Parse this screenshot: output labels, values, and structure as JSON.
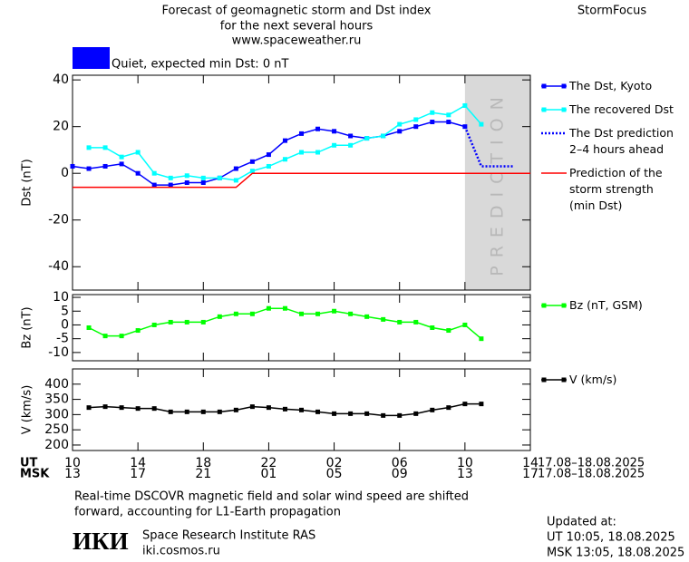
{
  "header": {
    "title_lines": [
      "Forecast of geomagnetic storm and Dst index",
      "for the next several hours",
      "www.spaceweather.ru"
    ],
    "brand": "StormFocus"
  },
  "status": {
    "text": "Quiet, expected min Dst: 0 nT",
    "color": "#0000ff"
  },
  "chart_data": [
    {
      "type": "line",
      "ylabel": "Dst (nT)",
      "xlim": [
        0,
        28
      ],
      "ylim": [
        -50,
        42
      ],
      "yticks": [
        -40,
        -20,
        0,
        20,
        40
      ],
      "prediction_region": {
        "x": [
          24,
          28
        ],
        "label": "PREDICTION"
      },
      "series": [
        {
          "name": "The Dst, Kyoto",
          "color": "#0000ff",
          "marker": "square",
          "x": [
            0,
            1,
            2,
            3,
            4,
            5,
            6,
            7,
            8,
            9,
            10,
            11,
            12,
            13,
            14,
            15,
            16,
            17,
            18,
            19,
            20,
            21,
            22,
            23,
            24
          ],
          "values": [
            3,
            2,
            3,
            4,
            0,
            -5,
            -5,
            -4,
            -4,
            -2,
            2,
            5,
            8,
            14,
            17,
            19,
            18,
            16,
            15,
            16,
            18,
            20,
            22,
            22,
            20
          ]
        },
        {
          "name": "The recovered Dst",
          "color": "#00ffff",
          "marker": "square",
          "x": [
            1,
            2,
            3,
            4,
            5,
            6,
            7,
            8,
            9,
            10,
            11,
            12,
            13,
            14,
            15,
            16,
            17,
            18,
            19,
            20,
            21,
            22,
            23,
            24,
            25
          ],
          "values": [
            11,
            11,
            7,
            9,
            0,
            -2,
            -1,
            -2,
            -2,
            -3,
            1,
            3,
            6,
            9,
            9,
            12,
            12,
            15,
            16,
            21,
            23,
            26,
            25,
            29,
            21
          ]
        },
        {
          "name": "The Dst prediction\n2–4 hours ahead",
          "color": "#0000ff",
          "dash": "dotted",
          "x": [
            24,
            25,
            27
          ],
          "values": [
            20,
            3,
            3
          ]
        },
        {
          "name": "Prediction of the\nstorm strength\n(min Dst)",
          "color": "#ff0000",
          "x": [
            0,
            10,
            11,
            28
          ],
          "values": [
            -6,
            -6,
            0,
            0
          ]
        }
      ]
    },
    {
      "type": "line",
      "ylabel": "Bz (nT)",
      "xlim": [
        0,
        28
      ],
      "ylim": [
        -13,
        11
      ],
      "yticks": [
        -10,
        -5,
        0,
        5,
        10
      ],
      "series": [
        {
          "name": "Bz (nT, GSM)",
          "color": "#00ff00",
          "marker": "square",
          "x": [
            1,
            2,
            3,
            4,
            5,
            6,
            7,
            8,
            9,
            10,
            11,
            12,
            13,
            14,
            15,
            16,
            17,
            18,
            19,
            20,
            21,
            22,
            23,
            24,
            25
          ],
          "values": [
            -1,
            -4,
            -4,
            -2,
            0,
            1,
            1,
            1,
            3,
            4,
            4,
            6,
            6,
            4,
            4,
            5,
            4,
            3,
            2,
            1,
            1,
            -1,
            -2,
            0,
            -5
          ]
        }
      ]
    },
    {
      "type": "line",
      "ylabel": "V (km/s)",
      "xlim": [
        0,
        28
      ],
      "ylim": [
        182,
        450
      ],
      "yticks": [
        200,
        250,
        300,
        350,
        400
      ],
      "xticks": [
        {
          "value": 0,
          "label": "10"
        },
        {
          "value": 4,
          "label": "14"
        },
        {
          "value": 8,
          "label": "18"
        },
        {
          "value": 12,
          "label": "22"
        },
        {
          "value": 16,
          "label": "02"
        },
        {
          "value": 20,
          "label": "06"
        },
        {
          "value": 24,
          "label": "10"
        },
        {
          "value": 28,
          "label": "14"
        }
      ],
      "x_labels_msk": [
        "13",
        "17",
        "21",
        "01",
        "05",
        "09",
        "13",
        "17"
      ],
      "x_row_labels": [
        "UT",
        "MSK"
      ],
      "date_ranges": [
        "17.08–18.08.2025",
        "17.08–18.08.2025"
      ],
      "series": [
        {
          "name": "V (km/s)",
          "color": "#000000",
          "marker": "square",
          "x": [
            1,
            2,
            3,
            4,
            5,
            6,
            7,
            8,
            9,
            10,
            11,
            12,
            13,
            14,
            15,
            16,
            17,
            18,
            19,
            20,
            21,
            22,
            23,
            24,
            25
          ],
          "values": [
            323,
            326,
            323,
            320,
            320,
            309,
            309,
            309,
            309,
            315,
            326,
            323,
            318,
            315,
            309,
            303,
            303,
            303,
            297,
            297,
            303,
            315,
            323,
            335,
            335
          ]
        }
      ]
    }
  ],
  "footer": {
    "note_lines": [
      "Real-time DSCOVR magnetic field and solar wind speed are shifted",
      "forward, accounting for L1-Earth propagation"
    ],
    "logo": "ИКИ",
    "institute": "Space Research Institute RAS",
    "website": "iki.cosmos.ru",
    "updated_lines": [
      "Updated at:",
      "UT   10:05, 18.08.2025",
      "MSK 13:05, 18.08.2025"
    ]
  }
}
